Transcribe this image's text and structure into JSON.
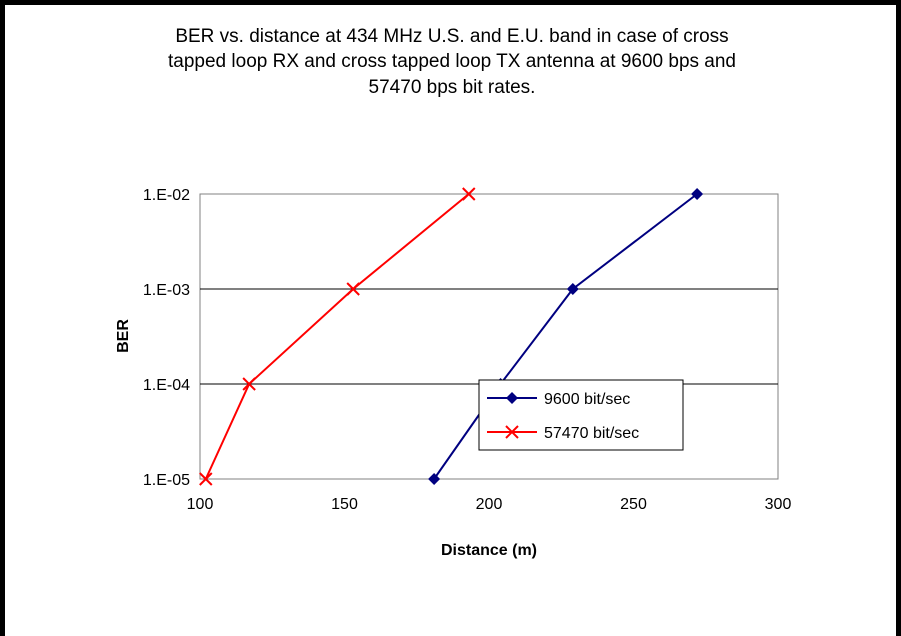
{
  "chart_data": {
    "type": "line",
    "title_lines": [
      "BER vs. distance at 434 MHz U.S. and E.U. band in case of cross",
      "tapped loop RX and cross tapped  loop TX antenna at 9600 bps and",
      "57470 bps bit rates."
    ],
    "xlabel": "Distance (m)",
    "ylabel": "BER",
    "xlim": [
      100,
      300
    ],
    "x_ticks": [
      "100",
      "150",
      "200",
      "250",
      "300"
    ],
    "y_scale": "log",
    "ylim": [
      1e-05,
      0.01
    ],
    "y_ticks": [
      "1.E-05",
      "1.E-04",
      "1.E-03",
      "1.E-02"
    ],
    "grid": "horizontal major gridlines",
    "legend_position": "inside-lower-right",
    "series": [
      {
        "name": "9600 bit/sec",
        "color": "#000080",
        "marker": "diamond",
        "x": [
          181,
          204,
          229,
          272
        ],
        "y": [
          1e-05,
          0.0001,
          0.001,
          0.01
        ]
      },
      {
        "name": "57470 bit/sec",
        "color": "#ff0000",
        "marker": "x",
        "x": [
          102,
          117,
          153,
          193
        ],
        "y": [
          1e-05,
          0.0001,
          0.001,
          0.01
        ]
      }
    ]
  }
}
